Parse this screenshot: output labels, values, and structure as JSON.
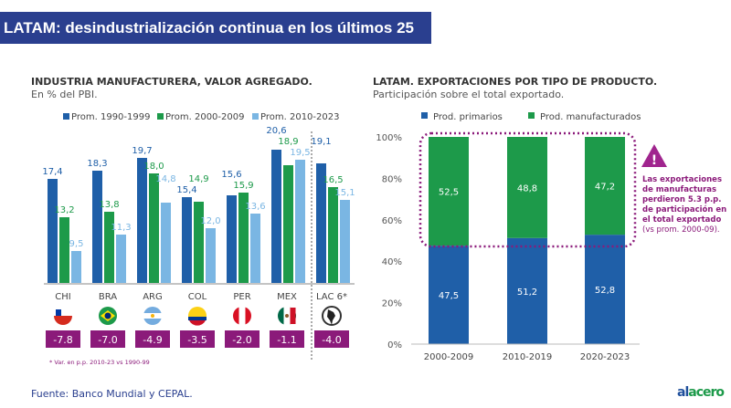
{
  "header": {
    "title": "LATAM: desindustrialización continua en los últimos 25 años"
  },
  "chart_data": [
    {
      "type": "bar",
      "title": "INDUSTRIA MANUFACTURERA, VALOR AGREGADO.",
      "subtitle": "En % del PBI.",
      "categories": [
        "CHI",
        "BRA",
        "ARG",
        "COL",
        "PER",
        "MEX",
        "LAC 6*"
      ],
      "series": [
        {
          "name": "Prom. 1990-1999",
          "color": "#1f5fa8",
          "values": [
            17.4,
            18.3,
            19.7,
            15.4,
            15.6,
            20.6,
            19.1
          ]
        },
        {
          "name": "Prom. 2000-2009",
          "color": "#1d9a4a",
          "values": [
            13.2,
            13.8,
            18.0,
            14.9,
            15.9,
            18.9,
            16.5
          ]
        },
        {
          "name": "Prom. 2010-2023",
          "color": "#7ab6e3",
          "values": [
            9.5,
            11.3,
            14.8,
            12.0,
            13.6,
            19.5,
            15.1
          ]
        }
      ],
      "value_labels": [
        [
          "17,4",
          "18,3",
          "19,7",
          "15,4",
          "15,6",
          "20,6",
          "19,1"
        ],
        [
          "13,2",
          "13,8",
          "18,0",
          "14,9",
          "15,9",
          "18,9",
          "16,5"
        ],
        [
          "9,5",
          "11,3",
          "14,8",
          "12,0",
          "13,6",
          "19,5",
          "15,1"
        ]
      ],
      "flags": [
        "chile-flag-icon",
        "brazil-flag-icon",
        "argentina-flag-icon",
        "colombia-flag-icon",
        "peru-flag-icon",
        "mexico-flag-icon",
        "latam-globe-icon"
      ],
      "variation": [
        "-7.8",
        "-7.0",
        "-4.9",
        "-3.5",
        "-2.0",
        "-1.1",
        "-4.0"
      ],
      "footnote": "* Var. en p.p. 2010-23 vs 1990-99",
      "ylim": [
        6,
        21
      ]
    },
    {
      "type": "bar",
      "stacked": true,
      "title": "LATAM. EXPORTACIONES POR TIPO DE PRODUCTO.",
      "subtitle": "Participación sobre el total exportado.",
      "categories": [
        "2000-2009",
        "2010-2019",
        "2020-2023"
      ],
      "series": [
        {
          "name": "Prod. primarios",
          "color": "#1f5fa8",
          "values": [
            47.5,
            51.2,
            52.8
          ],
          "labels": [
            "47,5",
            "51,2",
            "52,8"
          ]
        },
        {
          "name": "Prod. manufacturados",
          "color": "#1d9a4a",
          "values": [
            52.5,
            48.8,
            47.2
          ],
          "labels": [
            "52,5",
            "48,8",
            "47,2"
          ]
        }
      ],
      "yticks": [
        "0%",
        "20%",
        "40%",
        "60%",
        "80%",
        "100%"
      ],
      "ylim": [
        0,
        100
      ],
      "annotation": {
        "bold": "Las exportaciones de manufacturas perdieron 5.3 p.p. de participación en el total exportado",
        "normal": "(vs prom. 2000-09)."
      }
    }
  ],
  "accent": "#8b1a7a",
  "source": "Fuente: Banco Mundial y CEPAL.",
  "logo": {
    "a": "al",
    "b": "acero"
  }
}
